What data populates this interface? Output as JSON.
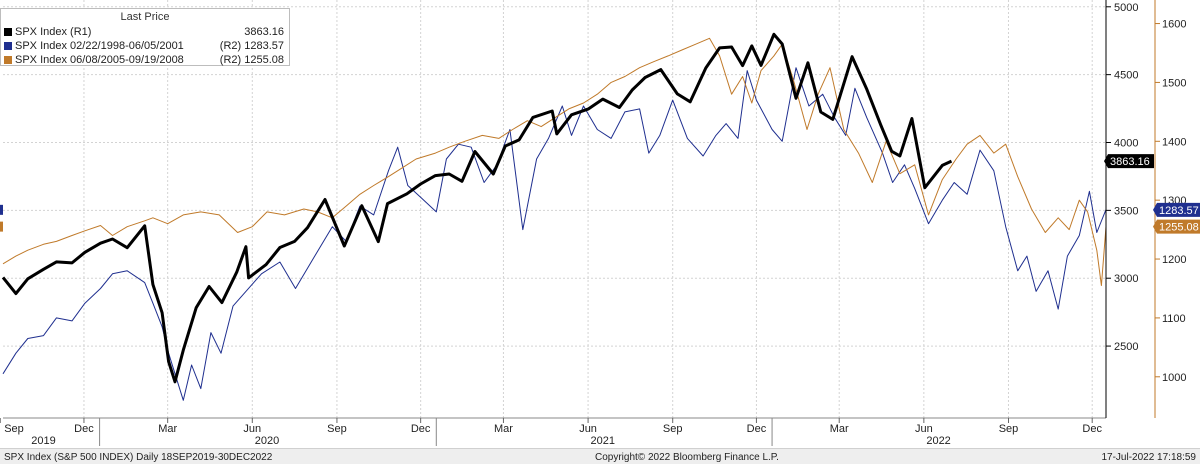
{
  "chart_data": {
    "type": "line",
    "title": "",
    "xlabel": "",
    "legend_title": "Last Price",
    "legend_placement": "top-left",
    "grid": true,
    "x_range": [
      "2019-09-18",
      "2022-12-30"
    ],
    "left_axis": {
      "ticks": [
        5000,
        4500,
        4000,
        3500,
        3000,
        2500
      ],
      "ylim": [
        1970,
        5050
      ]
    },
    "right_axis": {
      "ticks": [
        1600,
        1500,
        1400,
        1300,
        1200,
        1100,
        1000
      ],
      "ylim": [
        930,
        1640
      ]
    },
    "x_ticks": [
      {
        "date": "2019-09-15",
        "label": "Sep"
      },
      {
        "date": "2019-12-15",
        "label": "Dec"
      },
      {
        "date": "2020-03-15",
        "label": "Mar"
      },
      {
        "date": "2020-06-15",
        "label": "Jun"
      },
      {
        "date": "2020-09-15",
        "label": "Sep"
      },
      {
        "date": "2020-12-15",
        "label": "Dec"
      },
      {
        "date": "2021-03-15",
        "label": "Mar"
      },
      {
        "date": "2021-06-15",
        "label": "Jun"
      },
      {
        "date": "2021-09-15",
        "label": "Sep"
      },
      {
        "date": "2021-12-15",
        "label": "Dec"
      },
      {
        "date": "2022-03-15",
        "label": "Mar"
      },
      {
        "date": "2022-06-15",
        "label": "Jun"
      },
      {
        "date": "2022-09-15",
        "label": "Sep"
      },
      {
        "date": "2022-12-15",
        "label": "Dec"
      }
    ],
    "year_labels": [
      {
        "date": "2019-11-01",
        "label": "2019"
      },
      {
        "date": "2020-07-01",
        "label": "2020"
      },
      {
        "date": "2021-07-01",
        "label": "2021"
      },
      {
        "date": "2022-07-01",
        "label": "2022"
      }
    ],
    "year_dividers": [
      "2020-01-01",
      "2021-01-01",
      "2022-01-01"
    ],
    "series": [
      {
        "name": "SPX Index (R1)",
        "legend_value": "3863.16",
        "last_value_label": "3863.16",
        "axis": "left",
        "color": "#000000",
        "width": 3,
        "points": [
          [
            "2019-09-18",
            3006
          ],
          [
            "2019-10-02",
            2887
          ],
          [
            "2019-10-15",
            2996
          ],
          [
            "2019-11-01",
            3066
          ],
          [
            "2019-11-15",
            3120
          ],
          [
            "2019-12-02",
            3113
          ],
          [
            "2019-12-16",
            3191
          ],
          [
            "2020-01-02",
            3258
          ],
          [
            "2020-01-15",
            3289
          ],
          [
            "2020-01-31",
            3225
          ],
          [
            "2020-02-19",
            3386
          ],
          [
            "2020-02-28",
            2954
          ],
          [
            "2020-03-09",
            2746
          ],
          [
            "2020-03-16",
            2386
          ],
          [
            "2020-03-23",
            2237
          ],
          [
            "2020-04-01",
            2470
          ],
          [
            "2020-04-15",
            2783
          ],
          [
            "2020-04-29",
            2939
          ],
          [
            "2020-05-13",
            2820
          ],
          [
            "2020-05-29",
            3044
          ],
          [
            "2020-06-08",
            3232
          ],
          [
            "2020-06-11",
            3002
          ],
          [
            "2020-06-30",
            3100
          ],
          [
            "2020-07-15",
            3226
          ],
          [
            "2020-07-31",
            3271
          ],
          [
            "2020-08-14",
            3372
          ],
          [
            "2020-09-02",
            3580
          ],
          [
            "2020-09-23",
            3237
          ],
          [
            "2020-10-12",
            3534
          ],
          [
            "2020-10-30",
            3270
          ],
          [
            "2020-11-09",
            3550
          ],
          [
            "2020-11-30",
            3622
          ],
          [
            "2020-12-15",
            3694
          ],
          [
            "2020-12-31",
            3756
          ],
          [
            "2021-01-15",
            3768
          ],
          [
            "2021-01-29",
            3714
          ],
          [
            "2021-02-12",
            3934
          ],
          [
            "2021-03-04",
            3768
          ],
          [
            "2021-03-17",
            3974
          ],
          [
            "2021-04-01",
            4019
          ],
          [
            "2021-04-16",
            4185
          ],
          [
            "2021-05-07",
            4232
          ],
          [
            "2021-05-12",
            4063
          ],
          [
            "2021-05-28",
            4204
          ],
          [
            "2021-06-15",
            4246
          ],
          [
            "2021-07-01",
            4320
          ],
          [
            "2021-07-19",
            4258
          ],
          [
            "2021-08-02",
            4387
          ],
          [
            "2021-08-16",
            4479
          ],
          [
            "2021-09-02",
            4537
          ],
          [
            "2021-09-20",
            4358
          ],
          [
            "2021-10-04",
            4300
          ],
          [
            "2021-10-21",
            4549
          ],
          [
            "2021-11-05",
            4697
          ],
          [
            "2021-11-18",
            4704
          ],
          [
            "2021-11-30",
            4567
          ],
          [
            "2021-12-10",
            4712
          ],
          [
            "2021-12-20",
            4568
          ],
          [
            "2022-01-03",
            4797
          ],
          [
            "2022-01-12",
            4726
          ],
          [
            "2022-01-27",
            4326
          ],
          [
            "2022-02-09",
            4587
          ],
          [
            "2022-02-23",
            4225
          ],
          [
            "2022-03-08",
            4170
          ],
          [
            "2022-03-29",
            4632
          ],
          [
            "2022-04-14",
            4392
          ],
          [
            "2022-04-29",
            4132
          ],
          [
            "2022-05-11",
            3935
          ],
          [
            "2022-05-20",
            3901
          ],
          [
            "2022-06-02",
            4176
          ],
          [
            "2022-06-16",
            3667
          ],
          [
            "2022-07-05",
            3831
          ],
          [
            "2022-07-15",
            3863
          ]
        ]
      },
      {
        "name": "SPX Index 02/22/1998-06/05/2001",
        "axis_tag": "(R2)",
        "legend_value": "1283.57",
        "last_value_label": "1283.57",
        "axis": "right",
        "color": "#1f2f8f",
        "width": 1,
        "points": [
          [
            "2019-09-18",
            1005
          ],
          [
            "2019-10-02",
            1040
          ],
          [
            "2019-10-15",
            1065
          ],
          [
            "2019-11-01",
            1070
          ],
          [
            "2019-11-15",
            1100
          ],
          [
            "2019-12-02",
            1095
          ],
          [
            "2019-12-16",
            1125
          ],
          [
            "2020-01-02",
            1150
          ],
          [
            "2020-01-15",
            1175
          ],
          [
            "2020-01-31",
            1180
          ],
          [
            "2020-02-19",
            1160
          ],
          [
            "2020-02-28",
            1125
          ],
          [
            "2020-03-09",
            1085
          ],
          [
            "2020-03-16",
            1040
          ],
          [
            "2020-03-23",
            1005
          ],
          [
            "2020-04-01",
            960
          ],
          [
            "2020-04-10",
            1020
          ],
          [
            "2020-04-20",
            980
          ],
          [
            "2020-05-01",
            1075
          ],
          [
            "2020-05-12",
            1040
          ],
          [
            "2020-05-25",
            1120
          ],
          [
            "2020-06-08",
            1145
          ],
          [
            "2020-06-25",
            1175
          ],
          [
            "2020-07-15",
            1195
          ],
          [
            "2020-08-01",
            1150
          ],
          [
            "2020-08-20",
            1200
          ],
          [
            "2020-09-10",
            1255
          ],
          [
            "2020-09-25",
            1230
          ],
          [
            "2020-10-10",
            1290
          ],
          [
            "2020-10-25",
            1275
          ],
          [
            "2020-11-10",
            1350
          ],
          [
            "2020-11-20",
            1390
          ],
          [
            "2020-12-01",
            1325
          ],
          [
            "2020-12-15",
            1305
          ],
          [
            "2021-01-01",
            1280
          ],
          [
            "2021-01-12",
            1370
          ],
          [
            "2021-01-25",
            1395
          ],
          [
            "2021-02-08",
            1390
          ],
          [
            "2021-02-22",
            1330
          ],
          [
            "2021-03-08",
            1360
          ],
          [
            "2021-03-22",
            1420
          ],
          [
            "2021-04-05",
            1250
          ],
          [
            "2021-04-20",
            1370
          ],
          [
            "2021-05-03",
            1405
          ],
          [
            "2021-05-18",
            1460
          ],
          [
            "2021-05-28",
            1410
          ],
          [
            "2021-06-10",
            1460
          ],
          [
            "2021-06-25",
            1420
          ],
          [
            "2021-07-10",
            1405
          ],
          [
            "2021-07-25",
            1450
          ],
          [
            "2021-08-10",
            1455
          ],
          [
            "2021-08-20",
            1380
          ],
          [
            "2021-09-01",
            1410
          ],
          [
            "2021-09-15",
            1470
          ],
          [
            "2021-10-01",
            1405
          ],
          [
            "2021-10-18",
            1375
          ],
          [
            "2021-11-01",
            1410
          ],
          [
            "2021-11-12",
            1430
          ],
          [
            "2021-11-25",
            1405
          ],
          [
            "2021-12-05",
            1520
          ],
          [
            "2021-12-15",
            1470
          ],
          [
            "2022-01-01",
            1420
          ],
          [
            "2022-01-12",
            1400
          ],
          [
            "2022-01-27",
            1525
          ],
          [
            "2022-02-10",
            1460
          ],
          [
            "2022-02-25",
            1480
          ],
          [
            "2022-03-10",
            1440
          ],
          [
            "2022-03-22",
            1410
          ],
          [
            "2022-04-01",
            1490
          ],
          [
            "2022-04-14",
            1440
          ],
          [
            "2022-05-01",
            1380
          ],
          [
            "2022-05-12",
            1330
          ],
          [
            "2022-05-25",
            1360
          ],
          [
            "2022-06-05",
            1320
          ],
          [
            "2022-06-20",
            1260
          ],
          [
            "2022-07-05",
            1300
          ],
          [
            "2022-07-18",
            1330
          ],
          [
            "2022-08-01",
            1310
          ],
          [
            "2022-08-15",
            1385
          ],
          [
            "2022-08-30",
            1350
          ],
          [
            "2022-09-12",
            1255
          ],
          [
            "2022-09-25",
            1180
          ],
          [
            "2022-10-05",
            1205
          ],
          [
            "2022-10-15",
            1145
          ],
          [
            "2022-10-28",
            1180
          ],
          [
            "2022-11-08",
            1115
          ],
          [
            "2022-11-18",
            1205
          ],
          [
            "2022-12-01",
            1240
          ],
          [
            "2022-12-12",
            1315
          ],
          [
            "2022-12-20",
            1245
          ],
          [
            "2022-12-30",
            1284
          ]
        ]
      },
      {
        "name": "SPX Index 06/08/2005-09/19/2008",
        "axis_tag": "(R2)",
        "legend_value": "1255.08",
        "last_value_label": "1255.08",
        "axis": "right",
        "color": "#c07a2a",
        "width": 1,
        "points": [
          [
            "2019-09-18",
            1192
          ],
          [
            "2019-10-02",
            1205
          ],
          [
            "2019-10-15",
            1215
          ],
          [
            "2019-11-01",
            1225
          ],
          [
            "2019-11-15",
            1230
          ],
          [
            "2019-12-02",
            1240
          ],
          [
            "2019-12-16",
            1248
          ],
          [
            "2020-01-02",
            1257
          ],
          [
            "2020-01-15",
            1240
          ],
          [
            "2020-01-31",
            1255
          ],
          [
            "2020-02-19",
            1265
          ],
          [
            "2020-02-28",
            1270
          ],
          [
            "2020-03-15",
            1260
          ],
          [
            "2020-04-01",
            1275
          ],
          [
            "2020-04-20",
            1280
          ],
          [
            "2020-05-10",
            1275
          ],
          [
            "2020-05-30",
            1245
          ],
          [
            "2020-06-15",
            1255
          ],
          [
            "2020-07-01",
            1280
          ],
          [
            "2020-07-20",
            1275
          ],
          [
            "2020-08-10",
            1285
          ],
          [
            "2020-08-25",
            1280
          ],
          [
            "2020-09-10",
            1270
          ],
          [
            "2020-09-25",
            1290
          ],
          [
            "2020-10-10",
            1310
          ],
          [
            "2020-10-25",
            1325
          ],
          [
            "2020-11-10",
            1340
          ],
          [
            "2020-11-25",
            1355
          ],
          [
            "2020-12-10",
            1370
          ],
          [
            "2020-12-31",
            1380
          ],
          [
            "2021-01-15",
            1390
          ],
          [
            "2021-02-01",
            1400
          ],
          [
            "2021-02-20",
            1410
          ],
          [
            "2021-03-10",
            1405
          ],
          [
            "2021-03-25",
            1420
          ],
          [
            "2021-04-10",
            1435
          ],
          [
            "2021-04-25",
            1425
          ],
          [
            "2021-05-10",
            1440
          ],
          [
            "2021-05-25",
            1455
          ],
          [
            "2021-06-10",
            1465
          ],
          [
            "2021-06-25",
            1480
          ],
          [
            "2021-07-10",
            1500
          ],
          [
            "2021-07-25",
            1510
          ],
          [
            "2021-08-10",
            1525
          ],
          [
            "2021-08-25",
            1535
          ],
          [
            "2021-09-10",
            1545
          ],
          [
            "2021-09-25",
            1555
          ],
          [
            "2021-10-10",
            1565
          ],
          [
            "2021-10-25",
            1575
          ],
          [
            "2021-11-05",
            1545
          ],
          [
            "2021-11-18",
            1480
          ],
          [
            "2021-11-30",
            1510
          ],
          [
            "2021-12-10",
            1465
          ],
          [
            "2021-12-20",
            1520
          ],
          [
            "2022-01-03",
            1545
          ],
          [
            "2022-01-12",
            1565
          ],
          [
            "2022-01-25",
            1500
          ],
          [
            "2022-02-08",
            1420
          ],
          [
            "2022-02-20",
            1480
          ],
          [
            "2022-03-05",
            1525
          ],
          [
            "2022-03-20",
            1420
          ],
          [
            "2022-04-05",
            1380
          ],
          [
            "2022-04-20",
            1330
          ],
          [
            "2022-05-05",
            1400
          ],
          [
            "2022-05-20",
            1345
          ],
          [
            "2022-06-05",
            1360
          ],
          [
            "2022-06-20",
            1275
          ],
          [
            "2022-07-05",
            1335
          ],
          [
            "2022-07-20",
            1370
          ],
          [
            "2022-08-01",
            1395
          ],
          [
            "2022-08-15",
            1410
          ],
          [
            "2022-08-30",
            1380
          ],
          [
            "2022-09-12",
            1395
          ],
          [
            "2022-09-25",
            1340
          ],
          [
            "2022-10-10",
            1285
          ],
          [
            "2022-10-25",
            1245
          ],
          [
            "2022-11-08",
            1270
          ],
          [
            "2022-11-20",
            1250
          ],
          [
            "2022-12-01",
            1300
          ],
          [
            "2022-12-10",
            1280
          ],
          [
            "2022-12-20",
            1215
          ],
          [
            "2022-12-25",
            1155
          ],
          [
            "2022-12-30",
            1255
          ]
        ]
      }
    ]
  },
  "footer": {
    "left": "SPX Index (S&P 500 INDEX)  Daily 18SEP2019-30DEC2022",
    "center": "Copyright© 2022 Bloomberg Finance L.P.",
    "right": "17-Jul-2022 17:18:59"
  }
}
